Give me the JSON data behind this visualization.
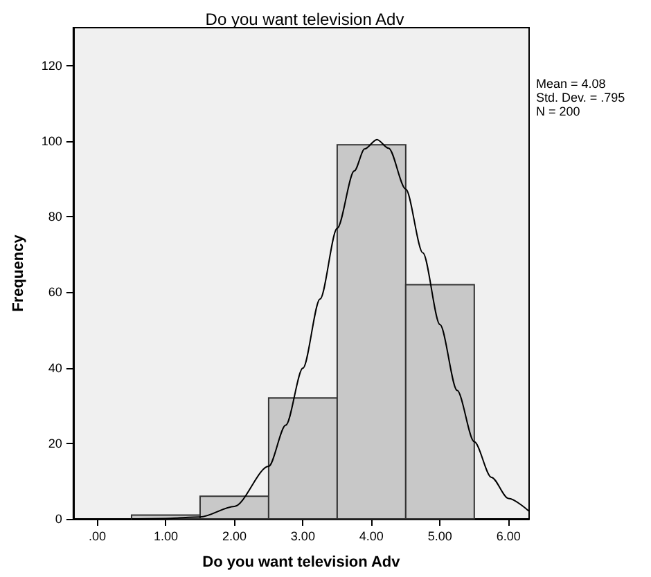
{
  "chart_data": {
    "type": "histogram",
    "title": "Do you want television Adv",
    "xlabel": "Do you want television Adv",
    "ylabel": "Frequency",
    "bins": [
      0.5,
      1.5,
      2.5,
      3.5,
      4.5,
      5.5
    ],
    "values": [
      1,
      6,
      32,
      99,
      62
    ],
    "color": "#c8c8c8",
    "series": [
      {
        "type": "line",
        "color": "#000000",
        "x": [
          0.5,
          1.0,
          1.5,
          2.0,
          2.5,
          2.75,
          3.0,
          3.25,
          3.5,
          3.75,
          3.9,
          4.08,
          4.25,
          4.5,
          4.75,
          5.0,
          5.25,
          5.5,
          5.75,
          6.0,
          6.3
        ],
        "values": [
          0,
          0.1,
          0.5,
          3.3,
          13.9,
          24.8,
          39.9,
          58.2,
          76.9,
          92.1,
          97.9,
          100.4,
          98.1,
          87.3,
          70.4,
          51.4,
          34.0,
          20.4,
          11.0,
          5.4,
          2.0
        ]
      }
    ],
    "marker": "none",
    "line_style": "solid",
    "grid": false,
    "xlim": [
      -0.35,
      6.3
    ],
    "xticks": [
      {
        "value": 0,
        "label": ".00"
      },
      {
        "value": 1,
        "label": "1.00"
      },
      {
        "value": 2,
        "label": "2.00"
      },
      {
        "value": 3,
        "label": "3.00"
      },
      {
        "value": 4,
        "label": "4.00"
      },
      {
        "value": 5,
        "label": "5.00"
      },
      {
        "value": 6,
        "label": "6.00"
      }
    ],
    "ylim": [
      0,
      130
    ],
    "yticks": [
      0,
      20,
      40,
      60,
      80,
      100,
      120
    ],
    "annotations": [
      "Mean = 4.08",
      "Std. Dev. = .795",
      "N = 200"
    ]
  }
}
